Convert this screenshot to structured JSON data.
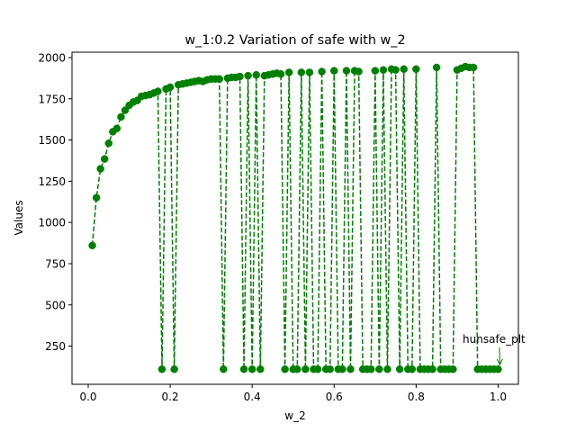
{
  "chart_data": {
    "type": "line",
    "title": "w_1:0.2 Variation of safe with w_2",
    "xlabel": "w_2",
    "ylabel": "Values",
    "xlim": [
      -0.0395,
      1.0495
    ],
    "ylim": [
      18.5,
      2032.5
    ],
    "xticks": [
      0.0,
      0.2,
      0.4,
      0.6,
      0.8,
      1.0
    ],
    "xtick_labels": [
      "0.0",
      "0.2",
      "0.4",
      "0.6",
      "0.8",
      "1.0"
    ],
    "yticks": [
      250,
      500,
      750,
      1000,
      1250,
      1500,
      1750,
      2000
    ],
    "ytick_labels": [
      "250",
      "500",
      "750",
      "1000",
      "1250",
      "1500",
      "1750",
      "2000"
    ],
    "grid": false,
    "series": [
      {
        "style": "dashed line with circle markers",
        "color": "#008000",
        "x": [
          0.01,
          0.02,
          0.03,
          0.04,
          0.05,
          0.06,
          0.07,
          0.08,
          0.09,
          0.1,
          0.11,
          0.12,
          0.13,
          0.14,
          0.15,
          0.16,
          0.17,
          0.18,
          0.19,
          0.2,
          0.21,
          0.22,
          0.23,
          0.24,
          0.25,
          0.26,
          0.27,
          0.28,
          0.29,
          0.3,
          0.31,
          0.32,
          0.33,
          0.34,
          0.35,
          0.36,
          0.37,
          0.38,
          0.39,
          0.4,
          0.41,
          0.42,
          0.43,
          0.44,
          0.45,
          0.46,
          0.47,
          0.48,
          0.49,
          0.5,
          0.51,
          0.52,
          0.53,
          0.54,
          0.55,
          0.56,
          0.57,
          0.58,
          0.59,
          0.6,
          0.61,
          0.62,
          0.63,
          0.64,
          0.65,
          0.66,
          0.67,
          0.68,
          0.69,
          0.7,
          0.71,
          0.72,
          0.73,
          0.74,
          0.75,
          0.76,
          0.77,
          0.78,
          0.79,
          0.8,
          0.81,
          0.82,
          0.83,
          0.84,
          0.85,
          0.86,
          0.87,
          0.88,
          0.89,
          0.9,
          0.91,
          0.92,
          0.93,
          0.94,
          0.95,
          0.96,
          0.97,
          0.98,
          0.99,
          1.0
        ],
        "y": [
          860,
          1150,
          1325,
          1385,
          1480,
          1550,
          1570,
          1640,
          1680,
          1710,
          1730,
          1740,
          1765,
          1770,
          1775,
          1785,
          1795,
          110,
          1810,
          1820,
          110,
          1835,
          1840,
          1845,
          1850,
          1855,
          1860,
          1855,
          1865,
          1870,
          1870,
          1870,
          110,
          1875,
          1880,
          1880,
          1885,
          110,
          1890,
          110,
          1895,
          110,
          1890,
          1895,
          1900,
          1905,
          1900,
          110,
          1910,
          110,
          110,
          1910,
          110,
          1910,
          110,
          110,
          1915,
          110,
          110,
          1920,
          110,
          110,
          1920,
          110,
          1920,
          1915,
          110,
          110,
          110,
          1920,
          110,
          1925,
          110,
          1930,
          1925,
          110,
          1930,
          110,
          110,
          1930,
          110,
          110,
          110,
          110,
          1940,
          110,
          110,
          110,
          110,
          1925,
          1935,
          1945,
          1940,
          1940,
          110,
          110,
          110,
          110,
          110,
          110
        ]
      }
    ],
    "annotations": [
      {
        "text": "hunsafe_plt",
        "point": [
          1.0,
          110
        ],
        "text_at": [
          0.99,
          270
        ]
      }
    ]
  }
}
